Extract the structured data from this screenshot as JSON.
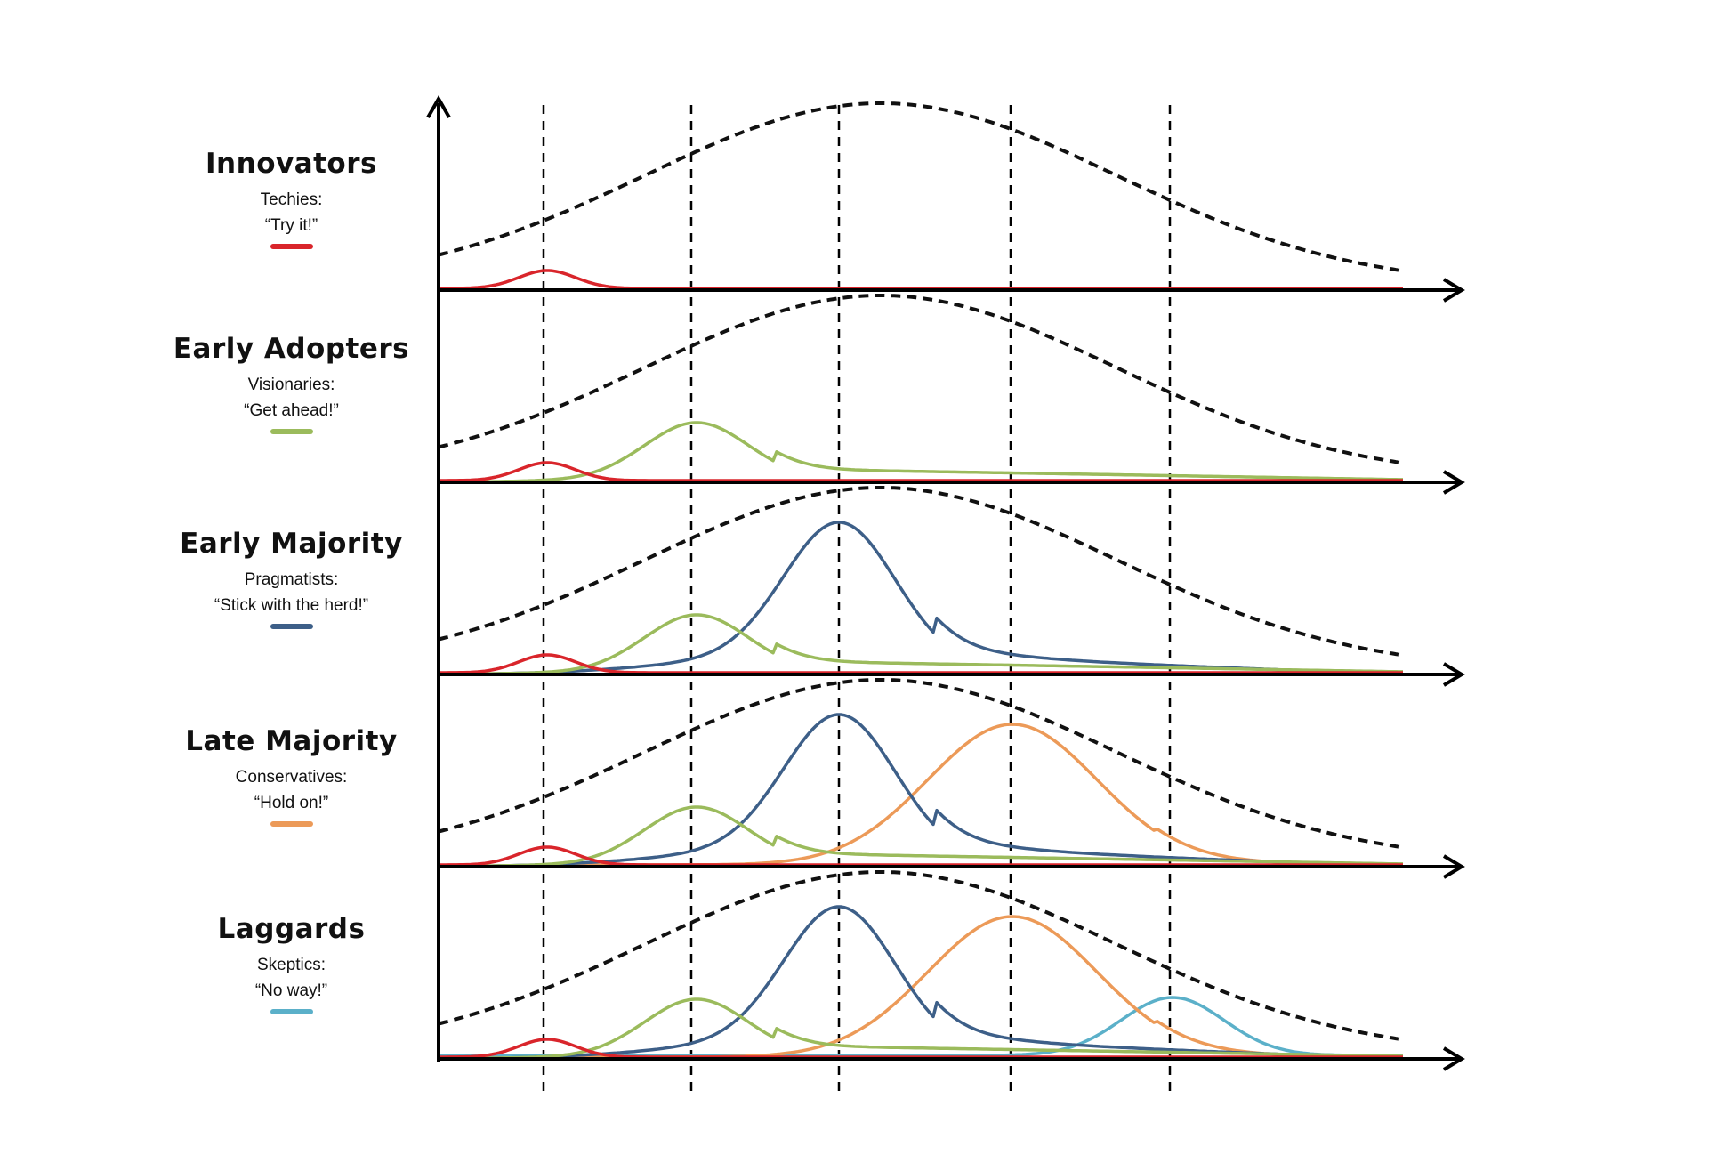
{
  "colors": {
    "innovators": "#d9252b",
    "early_adopters": "#9bbb5c",
    "early_majority": "#3d5f88",
    "late_majority": "#ec9a58",
    "laggards": "#5bb0c9",
    "axis": "#000000",
    "envelope": "#111111"
  },
  "panels": [
    {
      "title": "Innovators",
      "role": "Techies:",
      "quote": "“Try it!”",
      "color_key": "innovators"
    },
    {
      "title": "Early Adopters",
      "role": "Visionaries:",
      "quote": "“Get ahead!”",
      "color_key": "early_adopters"
    },
    {
      "title": "Early Majority",
      "role": "Pragmatists:",
      "quote": "“Stick with the herd!”",
      "color_key": "early_majority"
    },
    {
      "title": "Late Majority",
      "role": "Conservatives:",
      "quote": "“Hold on!”",
      "color_key": "late_majority"
    },
    {
      "title": "Laggards",
      "role": "Skeptics:",
      "quote": "“No way!”",
      "color_key": "laggards"
    }
  ]
}
